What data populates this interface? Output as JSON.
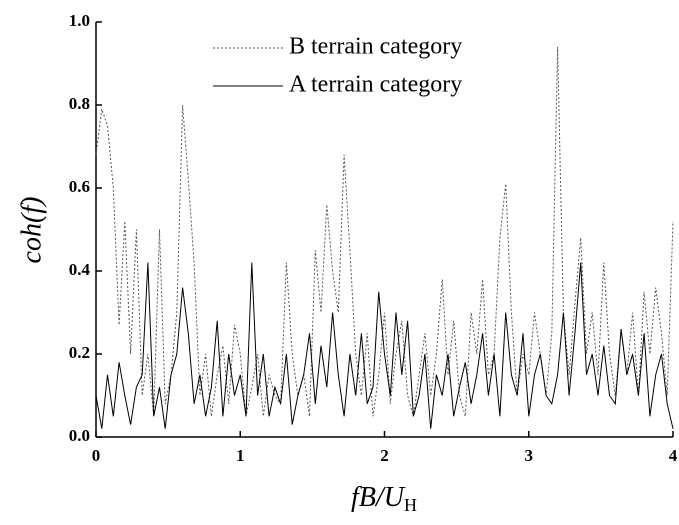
{
  "chart_data": {
    "type": "line",
    "ylabel": "coh(f)",
    "xlabel": {
      "main": "fB/U",
      "sub": "H"
    },
    "x": [
      0,
      0.04,
      0.08,
      0.12,
      0.16,
      0.2,
      0.24,
      0.28,
      0.32,
      0.36,
      0.4,
      0.44,
      0.48,
      0.52,
      0.56,
      0.6,
      0.64,
      0.68,
      0.72,
      0.76,
      0.8,
      0.84,
      0.88,
      0.92,
      0.96,
      1,
      1.04,
      1.08,
      1.12,
      1.16,
      1.2,
      1.24,
      1.28,
      1.32,
      1.36,
      1.4,
      1.44,
      1.48,
      1.52,
      1.56,
      1.6,
      1.64,
      1.68,
      1.72,
      1.76,
      1.8,
      1.84,
      1.88,
      1.92,
      1.96,
      2,
      2.04,
      2.08,
      2.12,
      2.16,
      2.2,
      2.24,
      2.28,
      2.32,
      2.36,
      2.4,
      2.44,
      2.48,
      2.52,
      2.56,
      2.6,
      2.64,
      2.68,
      2.72,
      2.76,
      2.8,
      2.84,
      2.88,
      2.92,
      2.96,
      3,
      3.04,
      3.08,
      3.12,
      3.16,
      3.2,
      3.24,
      3.28,
      3.32,
      3.36,
      3.4,
      3.44,
      3.48,
      3.52,
      3.56,
      3.6,
      3.64,
      3.68,
      3.72,
      3.76,
      3.8,
      3.84,
      3.88,
      3.92,
      3.96,
      4
    ],
    "series": [
      {
        "name": "B terrain category",
        "color": "#555555",
        "style": "dotted",
        "values": [
          0.68,
          0.79,
          0.75,
          0.6,
          0.27,
          0.52,
          0.2,
          0.5,
          0.1,
          0.2,
          0.05,
          0.5,
          0.08,
          0.15,
          0.3,
          0.8,
          0.62,
          0.42,
          0.1,
          0.2,
          0.05,
          0.15,
          0.22,
          0.08,
          0.27,
          0.2,
          0.05,
          0.12,
          0.2,
          0.05,
          0.15,
          0.1,
          0.08,
          0.42,
          0.2,
          0.1,
          0.15,
          0.05,
          0.45,
          0.3,
          0.56,
          0.4,
          0.3,
          0.68,
          0.45,
          0.2,
          0.1,
          0.25,
          0.05,
          0.15,
          0.3,
          0.08,
          0.2,
          0.28,
          0.1,
          0.05,
          0.15,
          0.25,
          0.1,
          0.2,
          0.38,
          0.15,
          0.28,
          0.1,
          0.05,
          0.3,
          0.2,
          0.38,
          0.15,
          0.2,
          0.48,
          0.61,
          0.3,
          0.1,
          0.2,
          0.15,
          0.3,
          0.2,
          0.1,
          0.25,
          0.94,
          0.3,
          0.15,
          0.32,
          0.48,
          0.2,
          0.3,
          0.15,
          0.42,
          0.2,
          0.1,
          0.26,
          0.15,
          0.3,
          0.1,
          0.35,
          0.2,
          0.36,
          0.25,
          0.1,
          0.52
        ]
      },
      {
        "name": "A terrain category",
        "color": "#000000",
        "style": "solid",
        "values": [
          0.1,
          0.02,
          0.15,
          0.05,
          0.18,
          0.1,
          0.03,
          0.12,
          0.15,
          0.42,
          0.05,
          0.12,
          0.02,
          0.15,
          0.2,
          0.36,
          0.25,
          0.08,
          0.15,
          0.05,
          0.12,
          0.28,
          0.05,
          0.2,
          0.1,
          0.15,
          0.05,
          0.42,
          0.1,
          0.2,
          0.05,
          0.12,
          0.08,
          0.2,
          0.03,
          0.1,
          0.15,
          0.25,
          0.08,
          0.22,
          0.12,
          0.3,
          0.15,
          0.05,
          0.2,
          0.1,
          0.25,
          0.08,
          0.12,
          0.35,
          0.2,
          0.1,
          0.3,
          0.15,
          0.28,
          0.05,
          0.1,
          0.2,
          0.02,
          0.15,
          0.1,
          0.2,
          0.05,
          0.12,
          0.18,
          0.08,
          0.15,
          0.25,
          0.1,
          0.2,
          0.05,
          0.3,
          0.15,
          0.1,
          0.25,
          0.05,
          0.15,
          0.2,
          0.1,
          0.08,
          0.15,
          0.3,
          0.1,
          0.25,
          0.42,
          0.15,
          0.2,
          0.1,
          0.22,
          0.1,
          0.08,
          0.26,
          0.15,
          0.2,
          0.1,
          0.25,
          0.05,
          0.15,
          0.2,
          0.08,
          0.02
        ]
      }
    ],
    "xlim": [
      0,
      4
    ],
    "xticks": [
      0,
      1,
      2,
      3,
      4
    ],
    "ylim": [
      0,
      1
    ],
    "yticks": [
      {
        "value": 0,
        "label": "0.0"
      },
      0.2,
      0.4,
      0.6,
      0.8,
      {
        "value": 1,
        "label": "1.0"
      }
    ],
    "legend": "top-center"
  }
}
